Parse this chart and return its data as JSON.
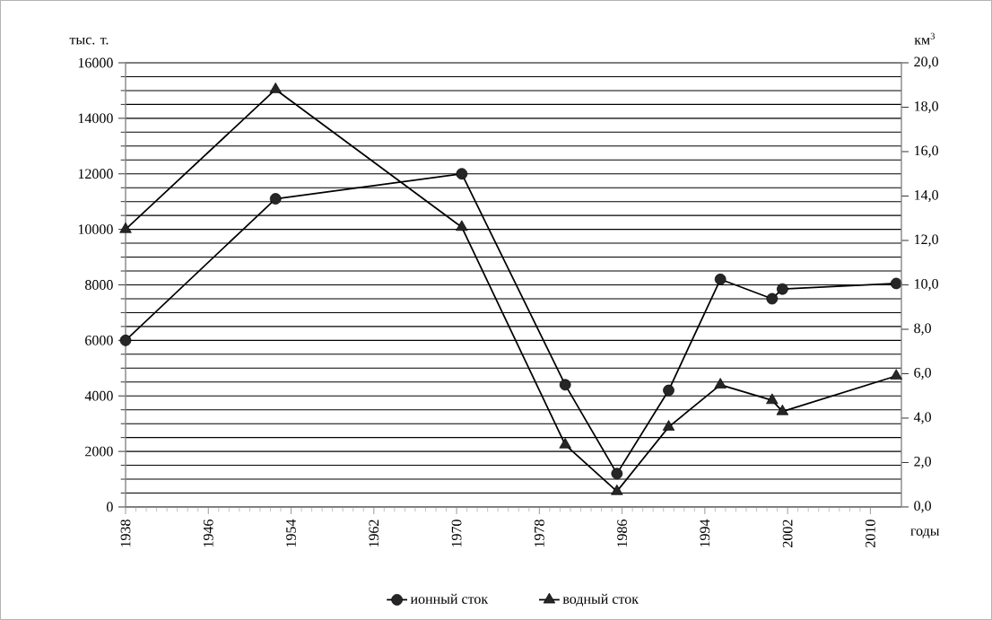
{
  "chart_data": {
    "type": "line",
    "xlabel": "годы",
    "ylabel": "тыс. т.",
    "y2label": "км$^{3}$",
    "xlim": [
      1938,
      2013
    ],
    "xticks": [
      1938,
      1946,
      1954,
      1962,
      1970,
      1978,
      1986,
      1994,
      2002,
      2010
    ],
    "ylim": [
      0,
      16000
    ],
    "yticks": [
      0,
      2000,
      4000,
      6000,
      8000,
      10000,
      12000,
      14000,
      16000
    ],
    "y2lim": [
      0,
      20
    ],
    "y2ticks": [
      {
        "value": 0,
        "label": "0,0"
      },
      {
        "value": 2,
        "label": "2,0"
      },
      {
        "value": 4,
        "label": "4,0"
      },
      {
        "value": 6,
        "label": "6,0"
      },
      {
        "value": 8,
        "label": "8,0"
      },
      {
        "value": 10,
        "label": "10,0"
      },
      {
        "value": 12,
        "label": "12,0"
      },
      {
        "value": 14,
        "label": "14,0"
      },
      {
        "value": 16,
        "label": "16,0"
      },
      {
        "value": 18,
        "label": "18,0"
      },
      {
        "value": 20,
        "label": "20,0"
      }
    ],
    "grid": "y",
    "legend": "bottom",
    "series": [
      {
        "name": "ионный сток",
        "color": "#262626",
        "marker": "circle",
        "x": [
          1938,
          1952.5,
          1970.5,
          1980.5,
          1985.5,
          1990.5,
          1995.5,
          2000.5,
          2001.5,
          2012.5
        ],
        "values": [
          6000,
          11100,
          12000,
          4400,
          1200,
          4200,
          8200,
          7500,
          7850,
          8050
        ]
      },
      {
        "name": "водный сток",
        "color": "#262626",
        "marker": "triangle",
        "axis": "y2",
        "x": [
          1938,
          1952.5,
          1970.5,
          1980.5,
          1985.5,
          1990.5,
          1995.5,
          2000.5,
          2001.5,
          2012.5
        ],
        "values": [
          12.5,
          18.8,
          12.6,
          2.8,
          0.7,
          3.6,
          5.5,
          4.8,
          4.3,
          5.9
        ]
      }
    ]
  }
}
